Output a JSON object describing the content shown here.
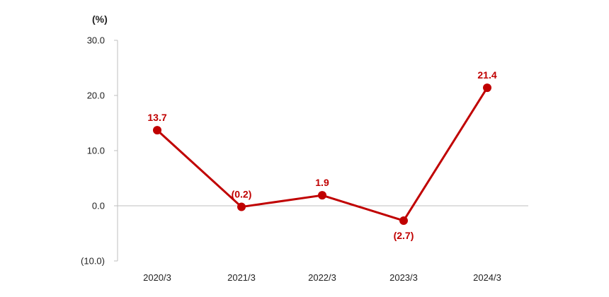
{
  "chart_data": {
    "type": "line",
    "unit_label": "(%)",
    "categories": [
      "2020/3",
      "2021/3",
      "2022/3",
      "2023/3",
      "2024/3"
    ],
    "series": [
      {
        "values": [
          13.7,
          -0.2,
          1.9,
          -2.7,
          21.4
        ],
        "labels": [
          "13.7",
          "(0.2)",
          "1.9",
          "(2.7)",
          "21.4"
        ],
        "label_placement": [
          "above",
          "above",
          "above",
          "below",
          "above"
        ],
        "color": "#c00000"
      }
    ],
    "yticks": [
      30,
      20,
      10,
      0,
      -10
    ],
    "ytick_labels": [
      "30.0",
      "20.0",
      "10.0",
      "0.0",
      "(10.0)"
    ],
    "ylim": [
      -10,
      30
    ],
    "grid": false,
    "axis_color": "#bfbfbf"
  }
}
